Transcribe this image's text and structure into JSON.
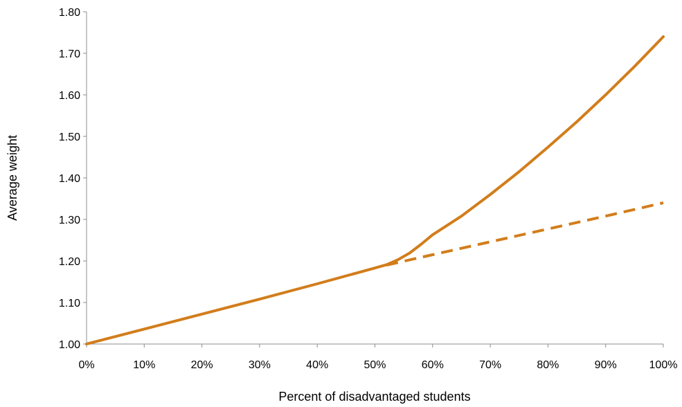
{
  "chart_data": {
    "type": "line",
    "title": "",
    "xlabel": "Percent of disadvantaged students",
    "ylabel": "Average weight",
    "xlim": [
      0,
      100
    ],
    "ylim": [
      1.0,
      1.8
    ],
    "x_ticks": [
      0,
      10,
      20,
      30,
      40,
      50,
      60,
      70,
      80,
      90,
      100
    ],
    "x_tick_labels": [
      "0%",
      "10%",
      "20%",
      "30%",
      "40%",
      "50%",
      "60%",
      "70%",
      "80%",
      "90%",
      "100%"
    ],
    "y_ticks": [
      1.0,
      1.1,
      1.2,
      1.3,
      1.4,
      1.5,
      1.6,
      1.7,
      1.8
    ],
    "y_tick_labels": [
      "1.00",
      "1.10",
      "1.20",
      "1.30",
      "1.40",
      "1.50",
      "1.60",
      "1.70",
      "1.80"
    ],
    "grid": false,
    "legend": "none",
    "series": [
      {
        "style": "solid",
        "color": "#D27D1B",
        "x": [
          0,
          10,
          20,
          30,
          40,
          50,
          52,
          54,
          56,
          58,
          60,
          65,
          70,
          75,
          80,
          85,
          90,
          95,
          100
        ],
        "y": [
          1.0,
          1.036,
          1.072,
          1.108,
          1.145,
          1.183,
          1.191,
          1.203,
          1.219,
          1.24,
          1.263,
          1.308,
          1.36,
          1.415,
          1.474,
          1.535,
          1.6,
          1.668,
          1.74
        ]
      },
      {
        "style": "dashed",
        "color": "#D27D1B",
        "x": [
          52,
          60,
          70,
          80,
          90,
          100
        ],
        "y": [
          1.19,
          1.215,
          1.246,
          1.277,
          1.308,
          1.34
        ]
      }
    ]
  }
}
